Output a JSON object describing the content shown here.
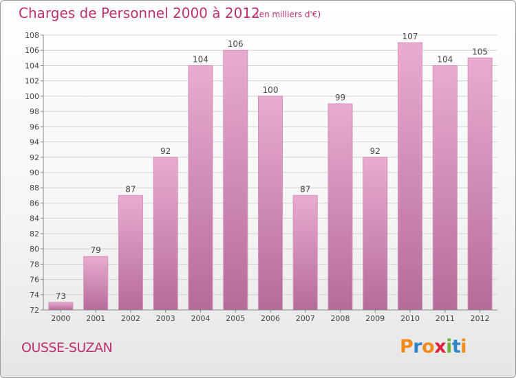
{
  "header": {
    "title": "Charges de Personnel 2000 à 2012",
    "subtitle": "(en milliers d'€)"
  },
  "footer": {
    "commune": "OUSSE-SUZAN"
  },
  "logo": {
    "letters": [
      "P",
      "r",
      "o",
      "x",
      "i",
      "t",
      "i"
    ],
    "colors": [
      "#f08a1c",
      "#2e86c8",
      "#f08a1c",
      "#e0223a",
      "#6cb33e",
      "#2e86c8",
      "#f08a1c"
    ]
  },
  "colors": {
    "accent": "#c0306f",
    "bar_top": "#e9acd0",
    "bar_bottom": "#b46c99",
    "bar_border": "#d590bb"
  },
  "chart_data": {
    "type": "bar",
    "title": "Charges de Personnel 2000 à 2012",
    "subtitle": "(en milliers d'€)",
    "categories": [
      "2000",
      "2001",
      "2002",
      "2003",
      "2004",
      "2005",
      "2006",
      "2007",
      "2008",
      "2009",
      "2010",
      "2011",
      "2012"
    ],
    "values": [
      73,
      79,
      87,
      92,
      104,
      106,
      100,
      87,
      99,
      92,
      107,
      104,
      105
    ],
    "ylim": [
      72,
      108
    ],
    "yticks": [
      72,
      74,
      76,
      78,
      80,
      82,
      84,
      86,
      88,
      90,
      92,
      94,
      96,
      98,
      100,
      102,
      104,
      106,
      108
    ],
    "grid": true,
    "legend": "none"
  }
}
